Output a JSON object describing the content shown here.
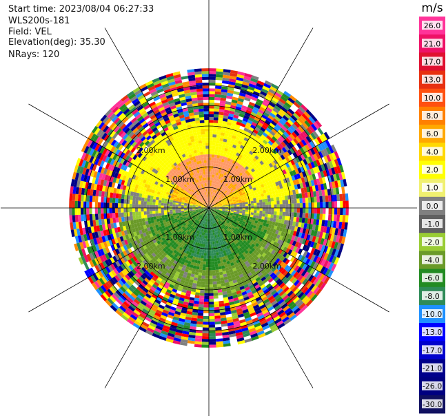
{
  "header": {
    "start_time": "Start time: 2023/08/04 06:27:33",
    "instrument": "WLS200s-181",
    "field": "Field: VEL",
    "elevation": "Elevation(deg): 35.30",
    "nrays": "NRays: 120"
  },
  "colorbar": {
    "title": "m/s",
    "ticks": [
      "26.0",
      "21.0",
      "17.0",
      "13.0",
      "10.0",
      "8.0",
      "6.0",
      "4.0",
      "2.0",
      "1.0",
      "0.0",
      "-1.0",
      "-2.0",
      "-4.0",
      "-6.0",
      "-8.0",
      "-10.0",
      "-13.0",
      "-17.0",
      "-21.0",
      "-26.0",
      "-30.0"
    ],
    "colors": [
      "#ff3399",
      "#ee1166",
      "#e01030",
      "#e83010",
      "#ff5010",
      "#ff8000",
      "#ffa800",
      "#ffd800",
      "#ffff00",
      "#f0f070",
      "#808080",
      "#606060",
      "#99cc33",
      "#6a9a28",
      "#228b22",
      "#2e8b57",
      "#1e90ff",
      "#0000ff",
      "#0000cd",
      "#00008b",
      "#000080",
      "#101060"
    ]
  },
  "chart_data": {
    "type": "ppi",
    "field": "VEL",
    "units": "m/s",
    "nrays": 120,
    "elevation_deg": 35.3,
    "range_rings_km": [
      1.0,
      2.0
    ],
    "ring_labels": [
      "1.00km",
      "2.00km"
    ],
    "max_range_km": 3.4,
    "color_scale": [
      -30,
      30
    ]
  }
}
